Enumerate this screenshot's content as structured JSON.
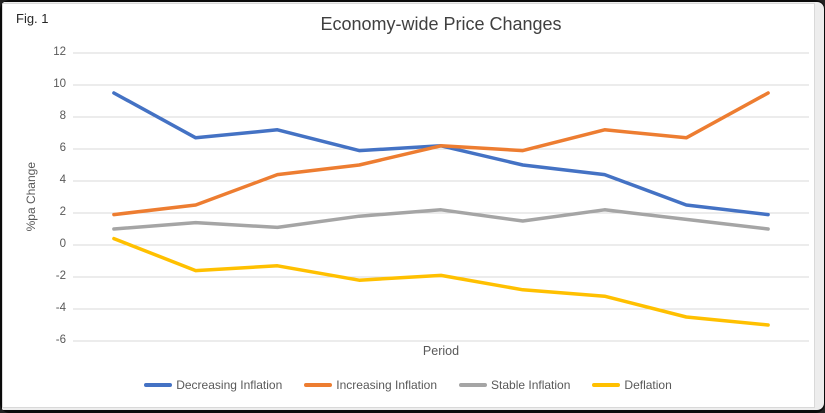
{
  "figure": {
    "label": "Fig. 1"
  },
  "chart_data": {
    "type": "line",
    "title": "Economy-wide Price Changes",
    "xlabel": "Period",
    "ylabel": "%pa Change",
    "ylim": [
      -6,
      12
    ],
    "yticks": [
      12,
      10,
      8,
      6,
      4,
      2,
      0,
      -2,
      -4,
      -6
    ],
    "x": [
      1,
      2,
      3,
      4,
      5,
      6,
      7,
      8,
      9
    ],
    "x_tick_labels_visible": false,
    "grid": true,
    "legend_position": "bottom",
    "series": [
      {
        "name": "Decreasing Inflation",
        "color": "#4472C4",
        "values": [
          9.5,
          6.7,
          7.2,
          5.9,
          6.2,
          5.0,
          4.4,
          2.5,
          1.9
        ]
      },
      {
        "name": "Increasing Inflation",
        "color": "#ED7D31",
        "values": [
          1.9,
          2.5,
          4.4,
          5.0,
          6.2,
          5.9,
          7.2,
          6.7,
          9.5
        ]
      },
      {
        "name": "Stable Inflation",
        "color": "#A5A5A5",
        "values": [
          1.0,
          1.4,
          1.1,
          1.8,
          2.2,
          1.5,
          2.2,
          1.6,
          1.0
        ]
      },
      {
        "name": "Deflation",
        "color": "#FFC000",
        "values": [
          0.4,
          -1.6,
          -1.3,
          -2.2,
          -1.9,
          -2.8,
          -3.2,
          -4.5,
          -5.0
        ]
      }
    ],
    "colors": {
      "gridline": "#D9D9D9",
      "axis_text": "#595959",
      "title_text": "#404040"
    }
  }
}
